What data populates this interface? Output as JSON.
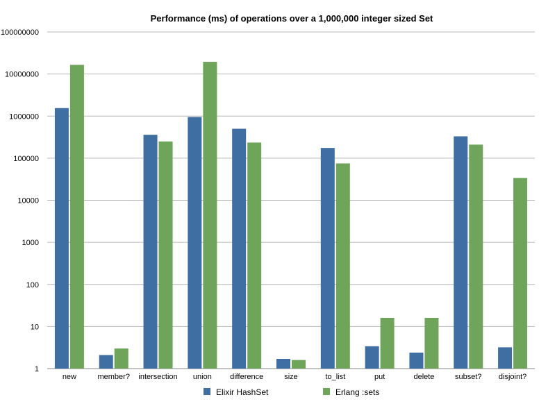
{
  "chart_data": {
    "type": "bar",
    "title": "Performance (ms) of operations over a 1,000,000 integer sized Set",
    "xlabel": "",
    "ylabel": "",
    "scale": "log",
    "ylim": [
      1,
      100000000
    ],
    "yticks": [
      "1",
      "10",
      "100",
      "1000",
      "10000",
      "100000",
      "1000000",
      "10000000",
      "100000000"
    ],
    "grid": true,
    "legend_position": "bottom",
    "categories": [
      "new",
      "member?",
      "intersection",
      "union",
      "difference",
      "size",
      "to_list",
      "put",
      "delete",
      "subset?",
      "disjoint?"
    ],
    "series": [
      {
        "name": "Elixir HashSet",
        "color": "#3f6ea3",
        "values": [
          1550000,
          2.1,
          360000,
          950000,
          500000,
          1.7,
          175000,
          3.4,
          2.4,
          330000,
          3.2
        ]
      },
      {
        "name": "Erlang :sets",
        "color": "#6ea55a",
        "values": [
          16500000,
          3.0,
          250000,
          19500000,
          235000,
          1.6,
          75000,
          16,
          16,
          210000,
          34000
        ]
      }
    ]
  }
}
